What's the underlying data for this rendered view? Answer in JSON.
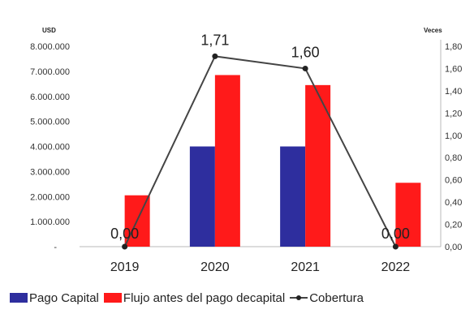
{
  "chart_data": {
    "type": "bar",
    "categories": [
      "2019",
      "2020",
      "2021",
      "2022"
    ],
    "series": [
      {
        "name": "Pago Capital",
        "kind": "bar",
        "axis": "left",
        "color": "#2e2e9e",
        "values": [
          0,
          4000000,
          4000000,
          0
        ]
      },
      {
        "name": "Flujo antes del pago decapital",
        "kind": "bar",
        "axis": "left",
        "color": "#ff1a1a",
        "values": [
          2050000,
          6850000,
          6450000,
          2550000
        ]
      },
      {
        "name": "Cobertura",
        "kind": "line",
        "axis": "right",
        "color": "#444444",
        "values": [
          0.0,
          1.71,
          1.6,
          0.0
        ]
      }
    ],
    "data_labels": [
      "0,00",
      "1,71",
      "1,60",
      "0,00"
    ],
    "y_left": {
      "unit": "USD",
      "ylim": [
        0,
        8000000
      ],
      "ticks": [
        0,
        1000000,
        2000000,
        3000000,
        4000000,
        5000000,
        6000000,
        7000000,
        8000000
      ],
      "tick_labels": [
        "-",
        "1.000.000",
        "2.000.000",
        "3.000.000",
        "4.000.000",
        "5.000.000",
        "6.000.000",
        "7.000.000",
        "8.000.000"
      ]
    },
    "y_right": {
      "unit": "Veces",
      "ylim": [
        0,
        1.8
      ],
      "ticks": [
        0,
        0.2,
        0.4,
        0.6,
        0.8,
        1.0,
        1.2,
        1.4,
        1.6,
        1.8
      ],
      "tick_labels": [
        "0,00",
        "0,20",
        "0,40",
        "0,60",
        "0,80",
        "1,00",
        "1,20",
        "1,40",
        "1,60",
        "1,80"
      ]
    },
    "grid": false,
    "legend_position": "bottom"
  },
  "legend": {
    "items": [
      {
        "label": "Pago Capital",
        "color": "#2e2e9e"
      },
      {
        "label": "Flujo antes del pago decapital",
        "color": "#ff1a1a"
      },
      {
        "label": "Cobertura",
        "color": "#444444"
      }
    ]
  }
}
